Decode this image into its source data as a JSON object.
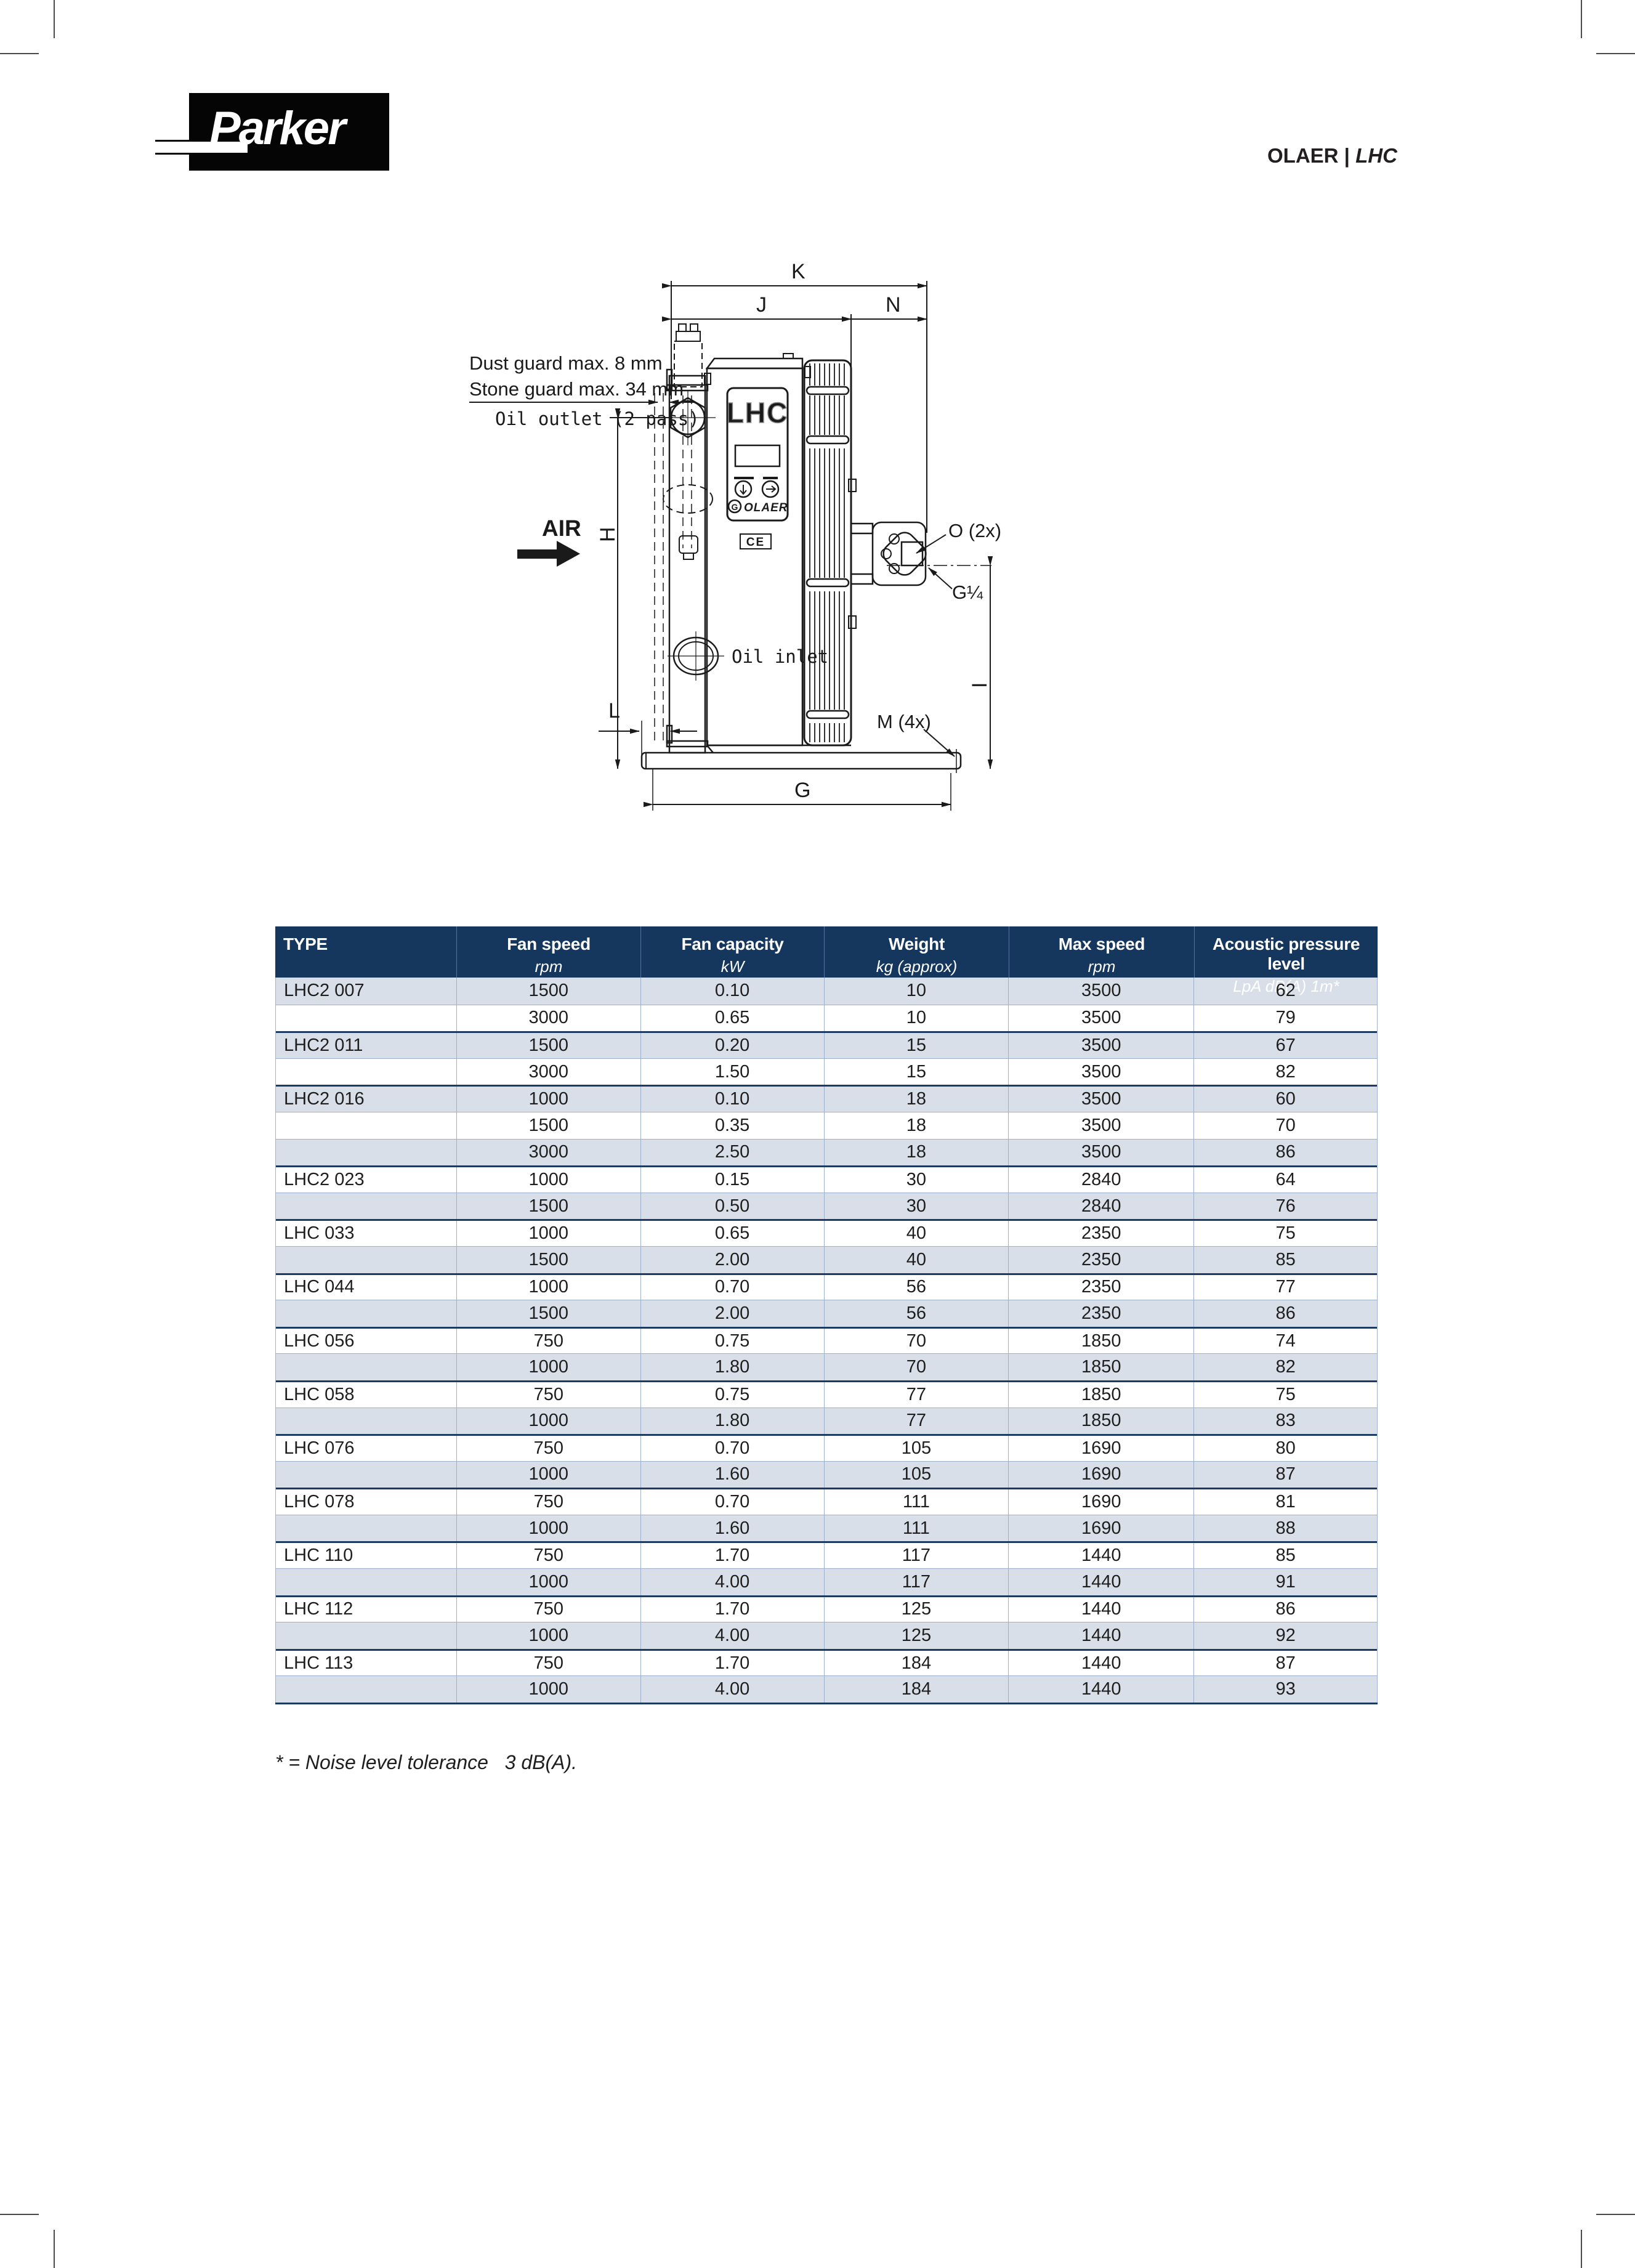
{
  "header": {
    "brand": "Parker",
    "right": {
      "brand": "OLAER",
      "divider": "|",
      "model": "LHC"
    }
  },
  "diagram": {
    "labels": {
      "dust_guard": "Dust guard max. 8 mm",
      "stone_guard": "Stone guard max. 34 mm",
      "oil_outlet": "Oil outlet (2 pass)",
      "air": "AIR",
      "oil_inlet": "Oil inlet",
      "o2x": "O (2x)",
      "g14": "G¼",
      "m4x": "M (4x)"
    },
    "dims": {
      "k": "K",
      "j": "J",
      "n": "N",
      "h": "H",
      "i": "I",
      "g": "G",
      "l": "L"
    },
    "nameplate": {
      "model": "LHC",
      "brand": "OLAER",
      "ce": "CE"
    }
  },
  "table": {
    "columns": [
      {
        "label": "TYPE",
        "unit": ""
      },
      {
        "label": "Fan speed",
        "unit": "rpm"
      },
      {
        "label": "Fan capacity",
        "unit": "kW"
      },
      {
        "label": "Weight",
        "unit": "kg (approx)"
      },
      {
        "label": "Max speed",
        "unit": "rpm"
      },
      {
        "label": "Acoustic pressure level",
        "unit": "LpA dB(A) 1m*"
      }
    ],
    "rows": [
      {
        "type": "LHC2 007",
        "fan_speed": "1500",
        "fan_capacity": "0.10",
        "weight": "10",
        "max_speed": "3500",
        "acoustic": "62",
        "group_start": true
      },
      {
        "type": "",
        "fan_speed": "3000",
        "fan_capacity": "0.65",
        "weight": "10",
        "max_speed": "3500",
        "acoustic": "79",
        "group_start": false
      },
      {
        "type": "LHC2 011",
        "fan_speed": "1500",
        "fan_capacity": "0.20",
        "weight": "15",
        "max_speed": "3500",
        "acoustic": "67",
        "group_start": true
      },
      {
        "type": "",
        "fan_speed": "3000",
        "fan_capacity": "1.50",
        "weight": "15",
        "max_speed": "3500",
        "acoustic": "82",
        "group_start": false
      },
      {
        "type": "LHC2 016",
        "fan_speed": "1000",
        "fan_capacity": "0.10",
        "weight": "18",
        "max_speed": "3500",
        "acoustic": "60",
        "group_start": true
      },
      {
        "type": "",
        "fan_speed": "1500",
        "fan_capacity": "0.35",
        "weight": "18",
        "max_speed": "3500",
        "acoustic": "70",
        "group_start": false
      },
      {
        "type": "",
        "fan_speed": "3000",
        "fan_capacity": "2.50",
        "weight": "18",
        "max_speed": "3500",
        "acoustic": "86",
        "group_start": false
      },
      {
        "type": "LHC2 023",
        "fan_speed": "1000",
        "fan_capacity": "0.15",
        "weight": "30",
        "max_speed": "2840",
        "acoustic": "64",
        "group_start": true
      },
      {
        "type": "",
        "fan_speed": "1500",
        "fan_capacity": "0.50",
        "weight": "30",
        "max_speed": "2840",
        "acoustic": "76",
        "group_start": false
      },
      {
        "type": "LHC 033",
        "fan_speed": "1000",
        "fan_capacity": "0.65",
        "weight": "40",
        "max_speed": "2350",
        "acoustic": "75",
        "group_start": true
      },
      {
        "type": "",
        "fan_speed": "1500",
        "fan_capacity": "2.00",
        "weight": "40",
        "max_speed": "2350",
        "acoustic": "85",
        "group_start": false
      },
      {
        "type": "LHC 044",
        "fan_speed": "1000",
        "fan_capacity": "0.70",
        "weight": "56",
        "max_speed": "2350",
        "acoustic": "77",
        "group_start": true
      },
      {
        "type": "",
        "fan_speed": "1500",
        "fan_capacity": "2.00",
        "weight": "56",
        "max_speed": "2350",
        "acoustic": "86",
        "group_start": false
      },
      {
        "type": "LHC 056",
        "fan_speed": "750",
        "fan_capacity": "0.75",
        "weight": "70",
        "max_speed": "1850",
        "acoustic": "74",
        "group_start": true
      },
      {
        "type": "",
        "fan_speed": "1000",
        "fan_capacity": "1.80",
        "weight": "70",
        "max_speed": "1850",
        "acoustic": "82",
        "group_start": false
      },
      {
        "type": "LHC 058",
        "fan_speed": "750",
        "fan_capacity": "0.75",
        "weight": "77",
        "max_speed": "1850",
        "acoustic": "75",
        "group_start": true
      },
      {
        "type": "",
        "fan_speed": "1000",
        "fan_capacity": "1.80",
        "weight": "77",
        "max_speed": "1850",
        "acoustic": "83",
        "group_start": false
      },
      {
        "type": "LHC 076",
        "fan_speed": "750",
        "fan_capacity": "0.70",
        "weight": "105",
        "max_speed": "1690",
        "acoustic": "80",
        "group_start": true
      },
      {
        "type": "",
        "fan_speed": "1000",
        "fan_capacity": "1.60",
        "weight": "105",
        "max_speed": "1690",
        "acoustic": "87",
        "group_start": false
      },
      {
        "type": "LHC 078",
        "fan_speed": "750",
        "fan_capacity": "0.70",
        "weight": "111",
        "max_speed": "1690",
        "acoustic": "81",
        "group_start": true
      },
      {
        "type": "",
        "fan_speed": "1000",
        "fan_capacity": "1.60",
        "weight": "111",
        "max_speed": "1690",
        "acoustic": "88",
        "group_start": false
      },
      {
        "type": "LHC 110",
        "fan_speed": "750",
        "fan_capacity": "1.70",
        "weight": "117",
        "max_speed": "1440",
        "acoustic": "85",
        "group_start": true
      },
      {
        "type": "",
        "fan_speed": "1000",
        "fan_capacity": "4.00",
        "weight": "117",
        "max_speed": "1440",
        "acoustic": "91",
        "group_start": false
      },
      {
        "type": "LHC 112",
        "fan_speed": "750",
        "fan_capacity": "1.70",
        "weight": "125",
        "max_speed": "1440",
        "acoustic": "86",
        "group_start": true
      },
      {
        "type": "",
        "fan_speed": "1000",
        "fan_capacity": "4.00",
        "weight": "125",
        "max_speed": "1440",
        "acoustic": "92",
        "group_start": false
      },
      {
        "type": "LHC 113",
        "fan_speed": "750",
        "fan_capacity": "1.70",
        "weight": "184",
        "max_speed": "1440",
        "acoustic": "87",
        "group_start": true
      },
      {
        "type": "",
        "fan_speed": "1000",
        "fan_capacity": "4.00",
        "weight": "184",
        "max_speed": "1440",
        "acoustic": "93",
        "group_start": false
      }
    ]
  },
  "footnote": "* = Noise level tolerance   3 dB(A).",
  "colors": {
    "header_bg": "#15375e",
    "row_alt": "#d9dfe9",
    "row_border": "#9db1cc",
    "group_border": "#1d3b61",
    "logo_bg": "#050505"
  }
}
